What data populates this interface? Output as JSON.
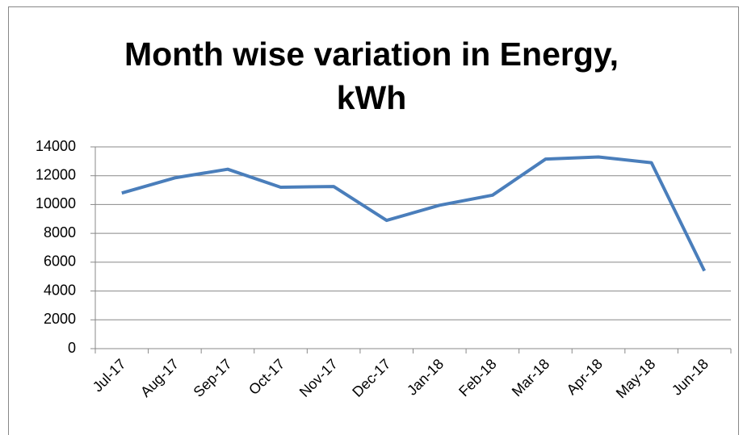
{
  "chart_data": {
    "type": "line",
    "title": "Month wise variation in Energy, kWh",
    "categories": [
      "Jul-17",
      "Aug-17",
      "Sep-17",
      "Oct-17",
      "Nov-17",
      "Dec-17",
      "Jan-18",
      "Feb-18",
      "Mar-18",
      "Apr-18",
      "May-18",
      "Jun-18"
    ],
    "values": [
      10800,
      11850,
      12450,
      11200,
      11250,
      8900,
      9950,
      10650,
      13150,
      13300,
      12900,
      5400
    ],
    "color": "#4a7ebb",
    "ylim": [
      0,
      14000
    ],
    "yticks": [
      0,
      2000,
      4000,
      6000,
      8000,
      10000,
      12000,
      14000
    ],
    "grid": true
  }
}
